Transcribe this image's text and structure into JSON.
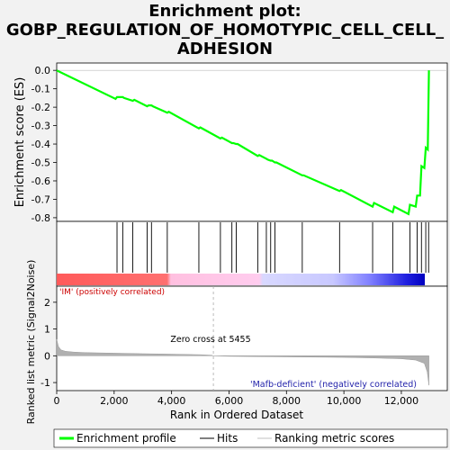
{
  "title_lines": [
    "Enrichment plot:",
    "GOBP_REGULATION_OF_HOMOTYPIC_CELL_CELL_",
    "ADHESION"
  ],
  "chart_data": {
    "type": "line",
    "es_panel": {
      "ylabel": "Enrichment score (ES)",
      "yticks": [
        "0.0",
        "-0.1",
        "-0.2",
        "-0.3",
        "-0.4",
        "-0.5",
        "-0.6",
        "-0.7",
        "-0.8"
      ],
      "ylim": [
        -0.82,
        0.04
      ],
      "curve": {
        "name": "Enrichment profile",
        "color": "#00ff00",
        "x": [
          0,
          2050,
          2100,
          2150,
          2300,
          2350,
          2650,
          2700,
          3150,
          3200,
          3300,
          3350,
          3850,
          3900,
          4950,
          5000,
          5700,
          5750,
          6100,
          6150,
          6250,
          6300,
          7000,
          7050,
          7300,
          7350,
          7450,
          7500,
          7600,
          7650,
          8550,
          8600,
          9850,
          9900,
          11000,
          11050,
          11700,
          11750,
          12250,
          12300,
          12500,
          12550,
          12650,
          12700,
          12800,
          12850,
          12920,
          12960
        ],
        "y": [
          0.0,
          -0.155,
          -0.145,
          -0.145,
          -0.145,
          -0.15,
          -0.165,
          -0.16,
          -0.195,
          -0.19,
          -0.19,
          -0.195,
          -0.23,
          -0.225,
          -0.315,
          -0.31,
          -0.37,
          -0.365,
          -0.395,
          -0.395,
          -0.4,
          -0.4,
          -0.465,
          -0.46,
          -0.48,
          -0.485,
          -0.49,
          -0.49,
          -0.5,
          -0.5,
          -0.57,
          -0.57,
          -0.655,
          -0.65,
          -0.74,
          -0.72,
          -0.77,
          -0.74,
          -0.78,
          -0.73,
          -0.74,
          -0.68,
          -0.68,
          -0.52,
          -0.53,
          -0.42,
          -0.43,
          0.0
        ]
      },
      "hits": [
        2100,
        2300,
        2650,
        3150,
        3300,
        3850,
        4950,
        5700,
        6100,
        6250,
        7000,
        7300,
        7450,
        7600,
        8550,
        9850,
        11000,
        11700,
        12300,
        12550,
        12700,
        12850,
        12950
      ]
    },
    "metric_panel": {
      "ylabel": "Ranked list metric (Signal2Noise)",
      "xlabel": "Rank in Ordered Dataset",
      "xticks": [
        "0",
        "2,000",
        "4,000",
        "6,000",
        "8,000",
        "10,000",
        "12,000"
      ],
      "xtick_values": [
        0,
        2000,
        4000,
        6000,
        8000,
        10000,
        12000
      ],
      "yticks": [
        "2",
        "1",
        "0",
        "-1"
      ],
      "ytick_values": [
        2,
        1,
        0,
        -1
      ],
      "ylim": [
        -1.3,
        2.6
      ],
      "xlim": [
        0,
        13600
      ],
      "zero_cross_label": "Zero cross at 5455",
      "zero_cross": 5455,
      "pos_label": "'IM' (positively correlated)",
      "neg_label": "'Mafb-deficient' (negatively correlated)",
      "metric_x": [
        0,
        60,
        150,
        300,
        600,
        1000,
        2000,
        3000,
        4000,
        5000,
        5400,
        5455,
        6000,
        8000,
        10000,
        11000,
        12000,
        12500,
        12800,
        12900,
        12960
      ],
      "metric_y": [
        0.62,
        0.35,
        0.22,
        0.17,
        0.14,
        0.12,
        0.1,
        0.08,
        0.06,
        0.04,
        0.02,
        0.0,
        -0.02,
        -0.04,
        -0.06,
        -0.08,
        -0.11,
        -0.16,
        -0.28,
        -0.6,
        -1.1
      ]
    },
    "legend": [
      {
        "label": "Enrichment profile",
        "color": "#00ff00"
      },
      {
        "label": "Hits",
        "color": "#000000"
      },
      {
        "label": "Ranking metric scores",
        "color": "#c0c0c0"
      }
    ],
    "n_genes": 12960
  }
}
